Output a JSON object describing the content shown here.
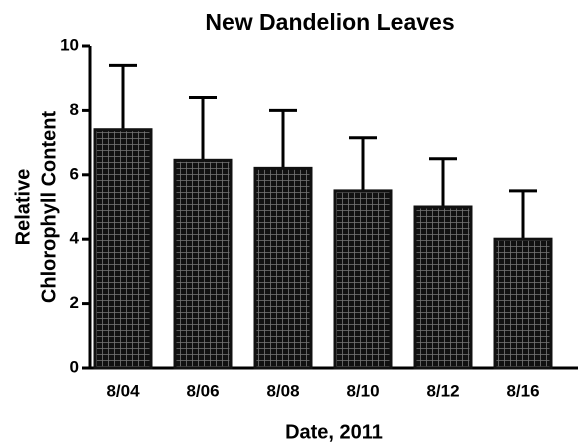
{
  "chart_data": {
    "type": "bar",
    "title": "New Dandelion Leaves",
    "ylabel": [
      "Relative",
      "Chlorophyll Content"
    ],
    "xlabel": "Date, 2011",
    "categories": [
      "8/04",
      "8/06",
      "8/08",
      "8/10",
      "8/12",
      "8/16"
    ],
    "values": [
      7.4,
      6.45,
      6.2,
      5.5,
      5.0,
      4.0
    ],
    "errors": [
      2.0,
      1.95,
      1.8,
      1.65,
      1.5,
      1.5
    ],
    "color": "#111111",
    "ylim": [
      0,
      10
    ],
    "yticks": [
      0,
      2,
      4,
      6,
      8,
      10
    ],
    "grid": false
  }
}
